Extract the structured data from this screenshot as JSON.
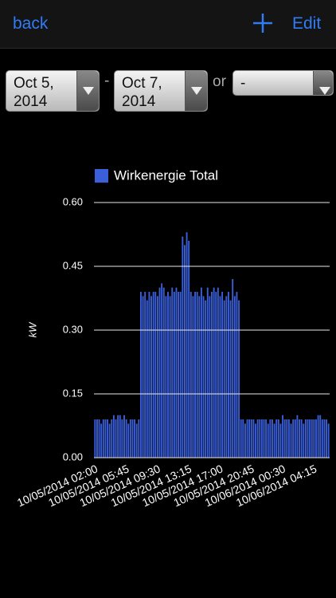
{
  "header": {
    "back": "back",
    "edit": "Edit"
  },
  "controls": {
    "start_date": [
      "Oct 5,",
      "2014"
    ],
    "dash": "-",
    "end_date": [
      "Oct 7,",
      "2014"
    ],
    "or": "or",
    "preset": "-"
  },
  "chart_data": {
    "type": "bar",
    "y_label": "kW",
    "grid": true,
    "legend": "top-left",
    "ylim": [
      0,
      0.6
    ],
    "yticks": [
      {
        "value": 0,
        "label": "0.00"
      },
      {
        "value": 0.15,
        "label": "0.15"
      },
      {
        "value": 0.3,
        "label": "0.30"
      },
      {
        "value": 0.45,
        "label": "0.45"
      },
      {
        "value": 0.6,
        "label": "0.60"
      }
    ],
    "categories": [
      "10/05/2014 02:00",
      null,
      null,
      null,
      null,
      null,
      null,
      null,
      null,
      null,
      null,
      null,
      null,
      null,
      null,
      "10/05/2014 05:45",
      null,
      null,
      null,
      null,
      null,
      null,
      null,
      null,
      null,
      null,
      null,
      null,
      null,
      null,
      "10/05/2014 09:30",
      null,
      null,
      null,
      null,
      null,
      null,
      null,
      null,
      null,
      null,
      null,
      null,
      null,
      null,
      "10/05/2014 13:15",
      null,
      null,
      null,
      null,
      null,
      null,
      null,
      null,
      null,
      null,
      null,
      null,
      null,
      null,
      "10/05/2014 17:00",
      null,
      null,
      null,
      null,
      null,
      null,
      null,
      null,
      null,
      null,
      null,
      null,
      null,
      null,
      "10/05/2014 20:45",
      null,
      null,
      null,
      null,
      null,
      null,
      null,
      null,
      null,
      null,
      null,
      null,
      null,
      null,
      "10/06/2014 00:30",
      null,
      null,
      null,
      null,
      null,
      null,
      null,
      null,
      null,
      null,
      null,
      null,
      null,
      null,
      "10/06/2014 04:15",
      null,
      null,
      null,
      null,
      null,
      null,
      null
    ],
    "series": [
      {
        "name": "Wirkenergie Total",
        "color": "#3a5fd8",
        "values": [
          0.09,
          0.09,
          0.09,
          0.08,
          0.09,
          0.09,
          0.09,
          0.08,
          0.09,
          0.1,
          0.09,
          0.1,
          0.1,
          0.09,
          0.1,
          0.09,
          0.08,
          0.09,
          0.09,
          0.09,
          0.08,
          0.09,
          0.39,
          0.38,
          0.39,
          0.37,
          0.39,
          0.38,
          0.39,
          0.39,
          0.38,
          0.4,
          0.41,
          0.4,
          0.38,
          0.39,
          0.38,
          0.4,
          0.39,
          0.4,
          0.39,
          0.39,
          0.52,
          0.5,
          0.53,
          0.51,
          0.39,
          0.38,
          0.39,
          0.39,
          0.38,
          0.4,
          0.38,
          0.37,
          0.4,
          0.38,
          0.39,
          0.4,
          0.39,
          0.4,
          0.38,
          0.39,
          0.37,
          0.38,
          0.39,
          0.37,
          0.42,
          0.38,
          0.39,
          0.37,
          0.09,
          0.09,
          0.08,
          0.09,
          0.09,
          0.09,
          0.09,
          0.08,
          0.09,
          0.09,
          0.09,
          0.09,
          0.09,
          0.08,
          0.09,
          0.09,
          0.08,
          0.09,
          0.09,
          0.08,
          0.1,
          0.09,
          0.09,
          0.09,
          0.08,
          0.09,
          0.09,
          0.1,
          0.09,
          0.09,
          0.08,
          0.09,
          0.09,
          0.09,
          0.09,
          0.09,
          0.09,
          0.1,
          0.1,
          0.09,
          0.09,
          0.09,
          0.08
        ]
      }
    ]
  }
}
